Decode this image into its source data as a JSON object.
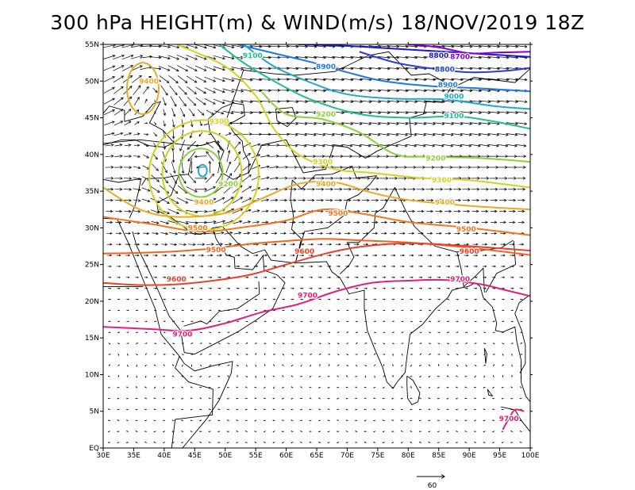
{
  "title": "300 hPa HEIGHT(m) & WIND(m/s) 18/NOV/2019 18Z",
  "map": {
    "lon_range": [
      30,
      100
    ],
    "lat_range": [
      0,
      55
    ],
    "lon_ticks": [
      "30E",
      "35E",
      "40E",
      "45E",
      "50E",
      "55E",
      "60E",
      "65E",
      "70E",
      "75E",
      "80E",
      "85E",
      "90E",
      "95E",
      "100E"
    ],
    "lat_ticks": [
      "EQ",
      "5N",
      "10N",
      "15N",
      "20N",
      "25N",
      "30N",
      "35N",
      "40N",
      "45N",
      "50N",
      "55N"
    ],
    "reference_vector": {
      "value": "60"
    }
  },
  "contours": [
    {
      "level": "8800",
      "color": "#1a1acc",
      "labels": [
        {
          "text": "8800",
          "lon": 85.0,
          "lat": 53.5
        }
      ],
      "points": [
        [
          62,
          55
        ],
        [
          70,
          54.8
        ],
        [
          80,
          54.3
        ],
        [
          90,
          53.8
        ],
        [
          100,
          53.3
        ]
      ]
    },
    {
      "level": "8700",
      "color": "#8a00d4",
      "labels": [
        {
          "text": "8700",
          "lon": 88.5,
          "lat": 53.3
        }
      ],
      "points": [
        [
          80,
          55
        ],
        [
          85,
          54.6
        ],
        [
          90,
          53.8
        ],
        [
          95,
          53.9
        ],
        [
          100,
          54.0
        ]
      ]
    },
    {
      "level": "8800",
      "color": "#2a3cdc",
      "labels": [
        {
          "text": "8800",
          "lon": 86.0,
          "lat": 51.6
        }
      ],
      "points": [
        [
          72,
          54.0
        ],
        [
          78,
          52.5
        ],
        [
          84,
          51.7
        ],
        [
          90,
          51.2
        ],
        [
          96,
          51.4
        ],
        [
          100,
          51.8
        ]
      ]
    },
    {
      "level": "8900",
      "color": "#1e78e6",
      "labels": [
        {
          "text": "8900",
          "lon": 66.5,
          "lat": 52.0
        },
        {
          "text": "8900",
          "lon": 86.5,
          "lat": 49.5
        }
      ],
      "points": [
        [
          52,
          55
        ],
        [
          58,
          53.8
        ],
        [
          64,
          52.6
        ],
        [
          70,
          51.2
        ],
        [
          76,
          50.0
        ],
        [
          84,
          49.3
        ],
        [
          92,
          49.0
        ],
        [
          100,
          48.6
        ]
      ]
    },
    {
      "level": "9000",
      "color": "#1eaac8",
      "labels": [
        {
          "text": "9000",
          "lon": 87.5,
          "lat": 47.9
        }
      ],
      "points": [
        [
          53,
          55
        ],
        [
          58,
          52.0
        ],
        [
          64,
          49.8
        ],
        [
          70,
          48.2
        ],
        [
          78,
          47.6
        ],
        [
          86,
          47.5
        ],
        [
          94,
          46.6
        ],
        [
          100,
          46.2
        ]
      ]
    },
    {
      "level": "9100",
      "color": "#20c08a",
      "labels": [
        {
          "text": "9100",
          "lon": 54.5,
          "lat": 53.5
        },
        {
          "text": "9100",
          "lon": 87.5,
          "lat": 45.3
        }
      ],
      "points": [
        [
          49,
          55
        ],
        [
          53,
          52.5
        ],
        [
          58,
          50.0
        ],
        [
          64,
          47.5
        ],
        [
          72,
          45.5
        ],
        [
          80,
          45.0
        ],
        [
          88,
          45.2
        ],
        [
          94,
          44.5
        ],
        [
          100,
          43.5
        ]
      ]
    },
    {
      "level": "9200",
      "color": "#8cd13c",
      "labels": [
        {
          "text": "9200",
          "lon": 66.5,
          "lat": 45.5
        },
        {
          "text": "9200",
          "lon": 84.5,
          "lat": 39.5
        },
        {
          "text": "9200",
          "lon": 50.5,
          "lat": 36.0
        }
      ],
      "points": [
        [
          56,
          48.5
        ],
        [
          60,
          45.5
        ],
        [
          66,
          44.8
        ],
        [
          72,
          43.0
        ],
        [
          78,
          40.0
        ],
        [
          84,
          39.7
        ],
        [
          92,
          39.5
        ],
        [
          100,
          39.0
        ]
      ]
    },
    {
      "level": "9300",
      "color": "#d4d21e",
      "labels": [
        {
          "text": "9300",
          "lon": 49.0,
          "lat": 44.5
        },
        {
          "text": "9300",
          "lon": 66.0,
          "lat": 39.0
        },
        {
          "text": "9300",
          "lon": 85.5,
          "lat": 36.5
        }
      ],
      "points": [
        [
          42,
          55
        ],
        [
          50,
          52.0
        ],
        [
          55,
          48.0
        ],
        [
          58,
          43.5
        ],
        [
          62,
          40.0
        ],
        [
          68,
          38.0
        ],
        [
          74,
          37.5
        ],
        [
          82,
          36.8
        ],
        [
          90,
          36.5
        ],
        [
          100,
          35.5
        ]
      ]
    },
    {
      "level": "9400",
      "color": "#e8aa24",
      "labels": [
        {
          "text": "9400",
          "lon": 37.5,
          "lat": 50.0
        },
        {
          "text": "9400",
          "lon": 66.5,
          "lat": 36.0
        },
        {
          "text": "9400",
          "lon": 86.0,
          "lat": 33.5
        },
        {
          "text": "9400",
          "lon": 46.5,
          "lat": 33.5
        }
      ],
      "points": [
        [
          30,
          35.5
        ],
        [
          36,
          32.5
        ],
        [
          42,
          31.5
        ],
        [
          50,
          32.0
        ],
        [
          56,
          34.0
        ],
        [
          62,
          36.0
        ],
        [
          68,
          36.2
        ],
        [
          74,
          34.8
        ],
        [
          80,
          33.8
        ],
        [
          90,
          33.0
        ],
        [
          100,
          32.5
        ]
      ]
    },
    {
      "level": "9500",
      "color": "#f07820",
      "labels": [
        {
          "text": "9500",
          "lon": 68.5,
          "lat": 32.0
        },
        {
          "text": "9500",
          "lon": 89.5,
          "lat": 29.8
        },
        {
          "text": "9500",
          "lon": 45.5,
          "lat": 30.0
        }
      ],
      "points": [
        [
          30,
          31.5
        ],
        [
          38,
          30.5
        ],
        [
          46,
          29.5
        ],
        [
          54,
          30.2
        ],
        [
          60,
          31.0
        ],
        [
          66,
          32.5
        ],
        [
          72,
          32.0
        ],
        [
          80,
          30.8
        ],
        [
          90,
          30.0
        ],
        [
          100,
          29.0
        ]
      ]
    },
    {
      "level": "9500",
      "color": "#f06420",
      "labels": [
        {
          "text": "9500",
          "lon": 48.5,
          "lat": 27.0
        }
      ],
      "points": [
        [
          30,
          26.5
        ],
        [
          36,
          26.6
        ],
        [
          42,
          26.8
        ],
        [
          48,
          27.2
        ],
        [
          54,
          27.8
        ],
        [
          60,
          28.2
        ],
        [
          66,
          28.5
        ],
        [
          72,
          28.3
        ],
        [
          80,
          28.0
        ],
        [
          90,
          27.3
        ],
        [
          100,
          26.3
        ]
      ]
    },
    {
      "level": "9600",
      "color": "#e8402c",
      "labels": [
        {
          "text": "9600",
          "lon": 63.0,
          "lat": 26.8
        },
        {
          "text": "9600",
          "lon": 90.0,
          "lat": 26.8
        },
        {
          "text": "9600",
          "lon": 42.0,
          "lat": 23.0
        }
      ],
      "points": [
        [
          30,
          22.5
        ],
        [
          36,
          22.2
        ],
        [
          42,
          22.3
        ],
        [
          48,
          22.8
        ],
        [
          54,
          23.6
        ],
        [
          60,
          25.0
        ],
        [
          66,
          26.4
        ],
        [
          72,
          27.4
        ],
        [
          80,
          27.9
        ],
        [
          90,
          27.5
        ],
        [
          100,
          26.9
        ]
      ]
    },
    {
      "level": "9700",
      "color": "#e0207c",
      "labels": [
        {
          "text": "9700",
          "lon": 63.5,
          "lat": 20.8
        },
        {
          "text": "9700",
          "lon": 88.5,
          "lat": 23.0
        },
        {
          "text": "9700",
          "lon": 43.0,
          "lat": 15.5
        }
      ],
      "points": [
        [
          30,
          16.5
        ],
        [
          38,
          16.2
        ],
        [
          44,
          16.0
        ],
        [
          50,
          17.0
        ],
        [
          56,
          18.5
        ],
        [
          62,
          19.6
        ],
        [
          68,
          21.3
        ],
        [
          74,
          22.5
        ],
        [
          80,
          22.8
        ],
        [
          86,
          22.9
        ],
        [
          92,
          22.3
        ],
        [
          96,
          21.5
        ],
        [
          100,
          20.7
        ]
      ]
    },
    {
      "level": "9700",
      "color": "#e0207c",
      "labels": [
        {
          "text": "9700",
          "lon": 96.5,
          "lat": 4.0
        }
      ],
      "points": [
        [
          95.5,
          2.5
        ],
        [
          96.5,
          4.0
        ],
        [
          97.5,
          5.2
        ],
        [
          99.0,
          5.0
        ]
      ]
    }
  ]
}
